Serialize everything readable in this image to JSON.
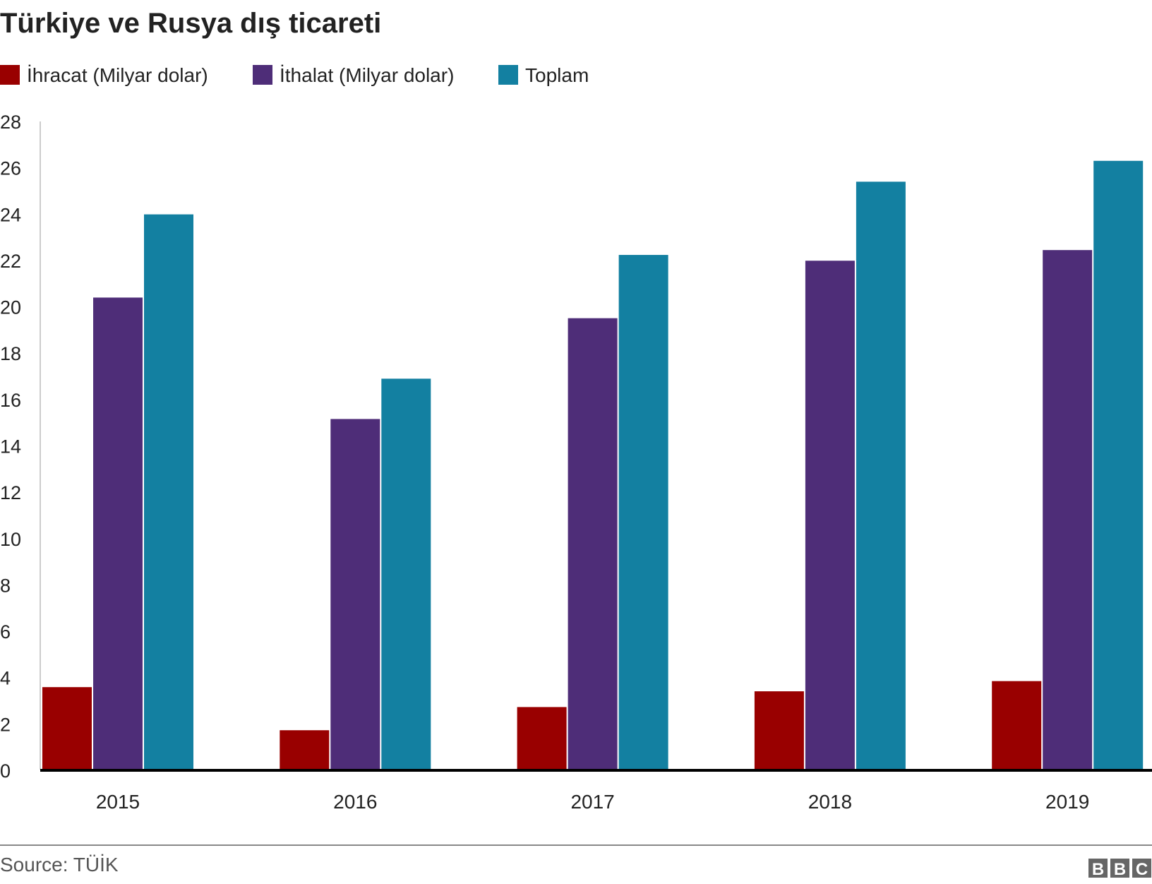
{
  "chart_data": {
    "type": "bar",
    "title": "Türkiye ve Rusya dış ticareti",
    "xlabel": "",
    "ylabel": "",
    "categories": [
      "2015",
      "2016",
      "2017",
      "2018",
      "2019"
    ],
    "series": [
      {
        "name": "İhracat (Milyar dolar)",
        "color": "#990000",
        "values": [
          3.59,
          1.73,
          2.73,
          3.41,
          3.85
        ]
      },
      {
        "name": "İthalat (Milyar dolar)",
        "color": "#4e2d78",
        "values": [
          20.4,
          15.16,
          19.51,
          21.99,
          22.45
        ]
      },
      {
        "name": "Toplam",
        "color": "#1380a1",
        "values": [
          23.99,
          16.9,
          22.24,
          25.4,
          26.3
        ]
      }
    ],
    "ylim": [
      0,
      28
    ],
    "yticks": [
      "0",
      "2",
      "4",
      "6",
      "8",
      "10",
      "12",
      "14",
      "16",
      "18",
      "20",
      "22",
      "24",
      "26",
      "28"
    ],
    "grid": false,
    "legend": "top-left"
  },
  "footer": {
    "source": "Source: TÜİK",
    "logo": "BBC"
  }
}
